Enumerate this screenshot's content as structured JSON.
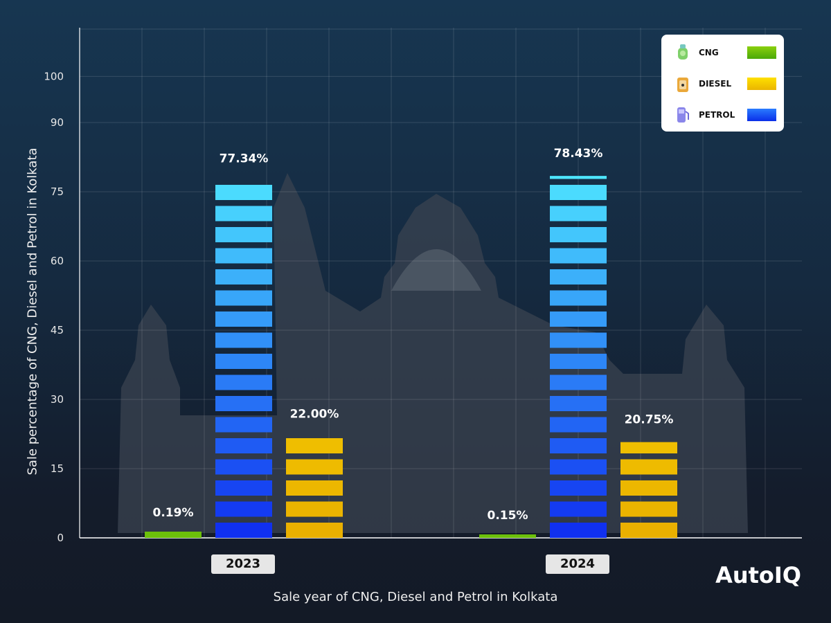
{
  "chart_data": {
    "type": "bar",
    "categories": [
      "2023",
      "2024"
    ],
    "series": [
      {
        "name": "CNG",
        "values": [
          0.19,
          0.15
        ],
        "labels": [
          "0.19%",
          "0.15%"
        ],
        "color": "#6cc00a"
      },
      {
        "name": "PETROL",
        "values": [
          77.34,
          78.43
        ],
        "labels": [
          "77.34%",
          "78.43%"
        ],
        "color": "#1a4cf5"
      },
      {
        "name": "DIESEL",
        "values": [
          22.0,
          20.75
        ],
        "labels": [
          "22.00%",
          "20.75%"
        ],
        "color": "#f2c200"
      }
    ],
    "yticks": [
      "0",
      "15",
      "30",
      "45",
      "60",
      "75",
      "90",
      "100"
    ],
    "ylim": [
      0,
      110
    ],
    "xlabel": "Sale year of CNG, Diesel and Petrol in Kolkata",
    "ylabel": "Sale percentage of CNG, Diesel and Petrol in Kolkata",
    "grid": true,
    "legend_position": "top-right"
  },
  "legend": [
    {
      "label": "CNG",
      "icon": "gas-cylinder-icon",
      "color": "#6cc00a"
    },
    {
      "label": "DIESEL",
      "icon": "jerrycan-icon",
      "color": "#f2c200"
    },
    {
      "label": "PETROL",
      "icon": "fuel-pump-icon",
      "color": "#1a4cf5"
    }
  ],
  "brand": "AutoIQ"
}
